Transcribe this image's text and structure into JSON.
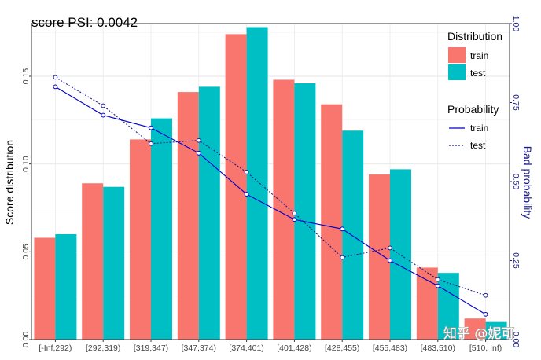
{
  "chart_data": {
    "type": "bar",
    "title": "score PSI: 0.0042",
    "categories": [
      "[-Inf,292)",
      "[292,319)",
      "[319,347)",
      "[347,374)",
      "[374,401)",
      "[401,428)",
      "[428,455)",
      "[455,483)",
      "[483,510)",
      "[510, Inf)"
    ],
    "series": [
      {
        "name": "train",
        "color": "#F8766D",
        "values": [
          0.058,
          0.089,
          0.114,
          0.141,
          0.174,
          0.148,
          0.134,
          0.094,
          0.041,
          0.012
        ]
      },
      {
        "name": "test",
        "color": "#00BFC4",
        "values": [
          0.06,
          0.087,
          0.126,
          0.144,
          0.178,
          0.146,
          0.119,
          0.097,
          0.038,
          0.01
        ]
      }
    ],
    "lines": [
      {
        "name": "train",
        "style": "solid",
        "color": "#0000CC",
        "values": [
          0.8,
          0.71,
          0.67,
          0.59,
          0.46,
          0.38,
          0.35,
          0.25,
          0.17,
          0.08
        ]
      },
      {
        "name": "test",
        "style": "dotted",
        "color": "#1a1a8c",
        "values": [
          0.83,
          0.74,
          0.62,
          0.63,
          0.53,
          0.4,
          0.26,
          0.29,
          0.19,
          0.14
        ]
      }
    ],
    "xlabel": "",
    "ylabel": "Score distribution",
    "ylabel_right": "Bad probability",
    "ylim": [
      0,
      0.18
    ],
    "ylim_right": [
      0,
      1.0
    ],
    "yticks": [
      "0.00",
      "0.05",
      "0.10",
      "0.15"
    ],
    "yticks_right": [
      "0.00",
      "0.25",
      "0.50",
      "0.75",
      "1.00"
    ],
    "legend_bars_title": "Distribution",
    "legend_lines_title": "Probability",
    "legend_position": "right",
    "grid": true
  },
  "watermark": "知乎 @妮可"
}
